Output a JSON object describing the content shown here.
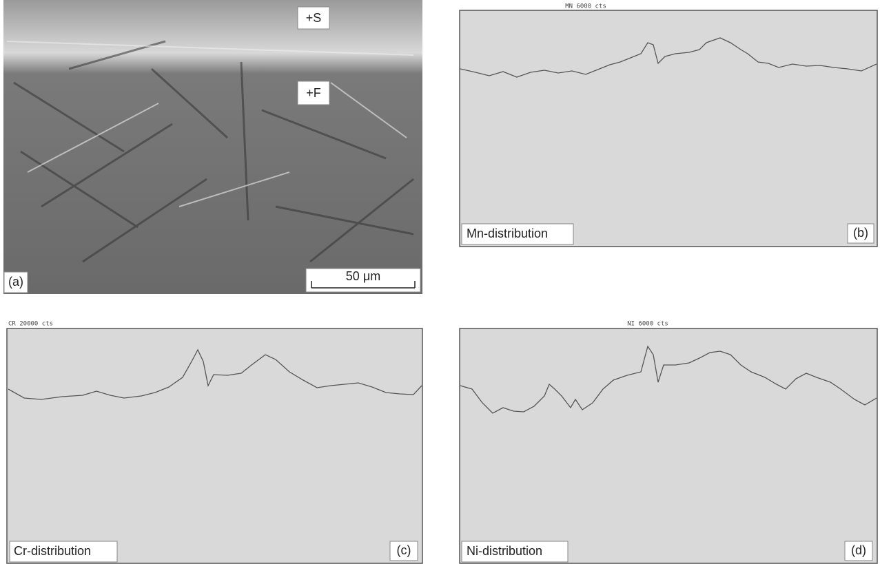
{
  "panels": [
    {
      "id": "(a)",
      "labels": [
        "+S",
        "+F"
      ],
      "scale_bar": "50 μm"
    },
    {
      "id": "(b)",
      "header": "MN   6000  cts",
      "caption": "Mn-distribution"
    },
    {
      "id": "(c)",
      "header": "CR  20000  cts",
      "caption": "Cr-distribution"
    },
    {
      "id": "(d)",
      "header": "NI   6000  cts",
      "caption": "Ni-distribution"
    }
  ]
}
